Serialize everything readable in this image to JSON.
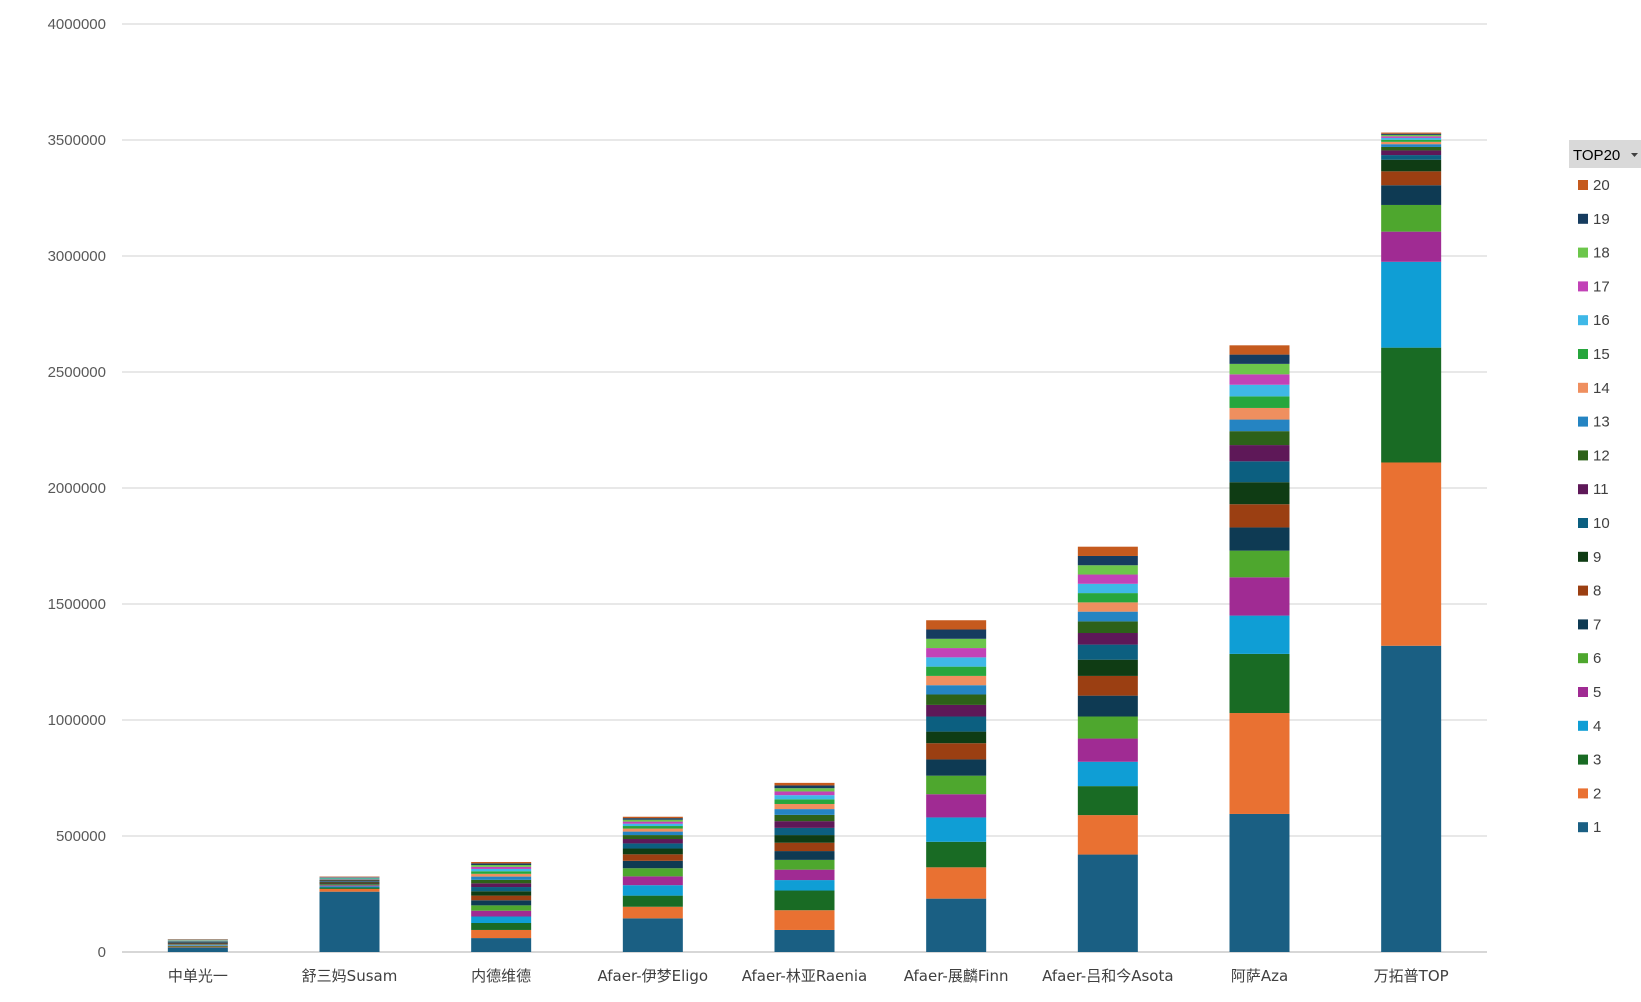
{
  "chart_data": {
    "type": "bar",
    "stacked": true,
    "title": "",
    "xlabel": "",
    "ylabel": "",
    "ylim": [
      0,
      4000000
    ],
    "yticks": [
      0,
      500000,
      1000000,
      1500000,
      2000000,
      2500000,
      3000000,
      3500000,
      4000000
    ],
    "ytick_labels": [
      "0",
      "500000",
      "1000000",
      "1500000",
      "2000000",
      "2500000",
      "3000000",
      "3500000",
      "4000000"
    ],
    "grid": true,
    "legend_position": "right",
    "legend_title": "TOP20",
    "categories": [
      "中单光一",
      "舒三妈Susam",
      "内德维德",
      "Afaer-伊梦Eligo",
      "Afaer-林亚Raenia",
      "Afaer-展麟Finn",
      "Afaer-吕和今Asota",
      "阿萨Aza",
      "万拓普TOP"
    ],
    "series": [
      {
        "name": "1",
        "color": "#1a5f83",
        "values": [
          20000,
          260000,
          60000,
          145000,
          95000,
          230000,
          420000,
          595000,
          1320000
        ]
      },
      {
        "name": "2",
        "color": "#e97132",
        "values": [
          3500,
          12000,
          35000,
          50000,
          85000,
          135000,
          170000,
          435000,
          790000
        ]
      },
      {
        "name": "3",
        "color": "#196b24",
        "values": [
          3000,
          6000,
          30000,
          48000,
          85000,
          110000,
          125000,
          255000,
          495000
        ]
      },
      {
        "name": "4",
        "color": "#0f9ed5",
        "values": [
          2800,
          5000,
          28000,
          45000,
          45000,
          105000,
          105000,
          165000,
          370000
        ]
      },
      {
        "name": "5",
        "color": "#a02b93",
        "values": [
          2600,
          4500,
          25000,
          38000,
          45000,
          100000,
          100000,
          165000,
          130000
        ]
      },
      {
        "name": "6",
        "color": "#4ea72e",
        "values": [
          2400,
          4000,
          23000,
          35000,
          42000,
          80000,
          95000,
          115000,
          115000
        ]
      },
      {
        "name": "7",
        "color": "#0e3a53",
        "values": [
          2200,
          3800,
          22000,
          32000,
          38000,
          70000,
          90000,
          100000,
          85000
        ]
      },
      {
        "name": "8",
        "color": "#9b3f12",
        "values": [
          2100,
          3500,
          20000,
          28000,
          36000,
          70000,
          85000,
          100000,
          60000
        ]
      },
      {
        "name": "9",
        "color": "#0f3c14",
        "values": [
          2000,
          3200,
          19000,
          25000,
          33000,
          50000,
          70000,
          95000,
          50000
        ]
      },
      {
        "name": "10",
        "color": "#0c5f80",
        "values": [
          1900,
          3000,
          18000,
          22000,
          31000,
          65000,
          65000,
          90000,
          20000
        ]
      },
      {
        "name": "11",
        "color": "#5e1858",
        "values": [
          1800,
          2800,
          16000,
          19000,
          29000,
          50000,
          50000,
          70000,
          20000
        ]
      },
      {
        "name": "12",
        "color": "#2d6119",
        "values": [
          1700,
          2600,
          15000,
          17000,
          27000,
          45000,
          50000,
          60000,
          15000
        ]
      },
      {
        "name": "13",
        "color": "#2584c2",
        "values": [
          1600,
          2400,
          14000,
          15000,
          25000,
          40000,
          42000,
          50000,
          12000
        ]
      },
      {
        "name": "14",
        "color": "#ef8f5f",
        "values": [
          1500,
          2200,
          12000,
          13000,
          22000,
          40000,
          40000,
          50000,
          10000
        ]
      },
      {
        "name": "15",
        "color": "#27a63d",
        "values": [
          1400,
          2000,
          11000,
          11000,
          20000,
          40000,
          40000,
          50000,
          9000
        ]
      },
      {
        "name": "16",
        "color": "#3fb8e7",
        "values": [
          1300,
          1900,
          10000,
          10000,
          18000,
          40000,
          40000,
          50000,
          8000
        ]
      },
      {
        "name": "17",
        "color": "#c242b7",
        "values": [
          1200,
          1800,
          9000,
          9000,
          16000,
          40000,
          40000,
          45000,
          7000
        ]
      },
      {
        "name": "18",
        "color": "#6cc64b",
        "values": [
          1100,
          1700,
          8000,
          8000,
          14000,
          40000,
          40000,
          45000,
          6000
        ]
      },
      {
        "name": "19",
        "color": "#163c5f",
        "values": [
          1000,
          1600,
          7000,
          7000,
          12000,
          40000,
          40000,
          40000,
          5000
        ]
      },
      {
        "name": "20",
        "color": "#c55a1e",
        "values": [
          900,
          1500,
          6000,
          6000,
          11000,
          40000,
          40000,
          40000,
          5000
        ]
      }
    ]
  }
}
